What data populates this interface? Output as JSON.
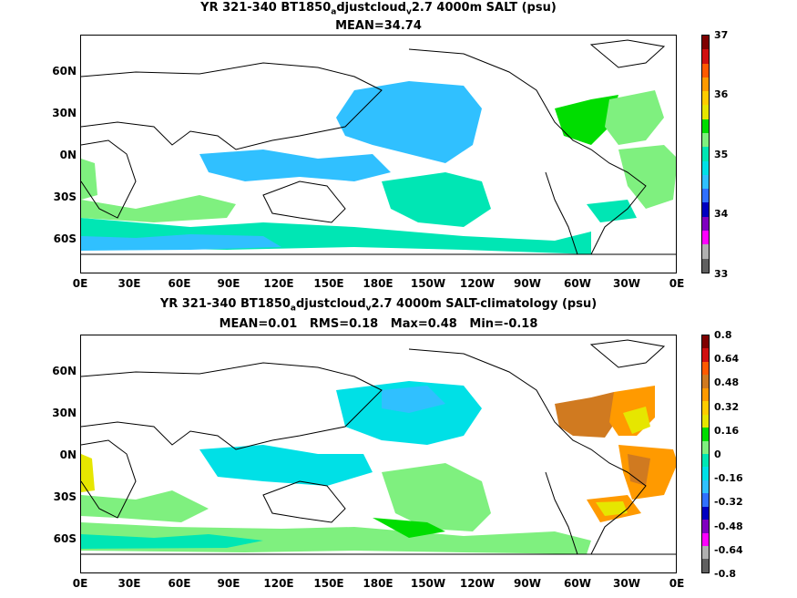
{
  "panels": [
    {
      "title_pre": "YR 321-340 BT1850",
      "title_sub1": "a",
      "title_mid": "djustcloud",
      "title_sub2": "v",
      "title_post": "2.7 4000m SALT (psu)",
      "stats": "MEAN=34.74",
      "colorbar_labels": [
        "37",
        "36",
        "35",
        "34",
        "33"
      ],
      "colorbar_colors": [
        "#7f0000",
        "#d01010",
        "#ff5a00",
        "#ff9a00",
        "#ffcc00",
        "#e6e600",
        "#00dd00",
        "#7ff07f",
        "#00e6b4",
        "#00e0e6",
        "#30c0ff",
        "#3070ff",
        "#0000c0",
        "#8000c0",
        "#ff00ff",
        "#b0b0b0",
        "#606060"
      ]
    },
    {
      "title_pre": "YR 321-340 BT1850",
      "title_sub1": "a",
      "title_mid": "djustcloud",
      "title_sub2": "v",
      "title_post": "2.7 4000m SALT-climatology (psu)",
      "stats": "MEAN=0.01   RMS=0.18   Max=0.48   Min=-0.18",
      "colorbar_labels": [
        "0.8",
        "0.64",
        "0.48",
        "0.32",
        "0.16",
        "0",
        "-0.16",
        "-0.32",
        "-0.48",
        "-0.64",
        "-0.8"
      ],
      "colorbar_colors": [
        "#7f0000",
        "#d01010",
        "#ff5a00",
        "#d07a20",
        "#ff9a00",
        "#ffcc00",
        "#e6e600",
        "#00dd00",
        "#7ff07f",
        "#00e6b4",
        "#00e0e6",
        "#30c0ff",
        "#3070ff",
        "#0000c0",
        "#8000c0",
        "#ff00ff",
        "#b0b0b0",
        "#606060"
      ]
    }
  ],
  "lat_labels": [
    "60N",
    "30N",
    "0N",
    "30S",
    "60S"
  ],
  "lon_labels": [
    "0E",
    "30E",
    "60E",
    "90E",
    "120E",
    "150E",
    "180E",
    "150W",
    "120W",
    "90W",
    "60W",
    "30W",
    "0E"
  ]
}
